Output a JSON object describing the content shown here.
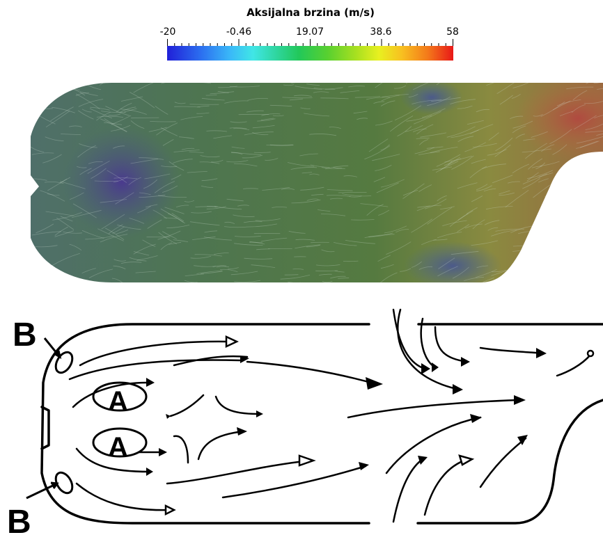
{
  "colorbar": {
    "title": "Aksijalna brzina (m/s)",
    "tick_labels": [
      "-20",
      "-0.46",
      "19.07",
      "38.6",
      "58"
    ],
    "colors": [
      "#2020d8",
      "#3ab8f8",
      "#22c85a",
      "#e8f020",
      "#e81818"
    ]
  },
  "sketch": {
    "labels": {
      "b_top": "B",
      "b_bottom": "B",
      "a_top": "A",
      "a_bottom": "A"
    }
  }
}
